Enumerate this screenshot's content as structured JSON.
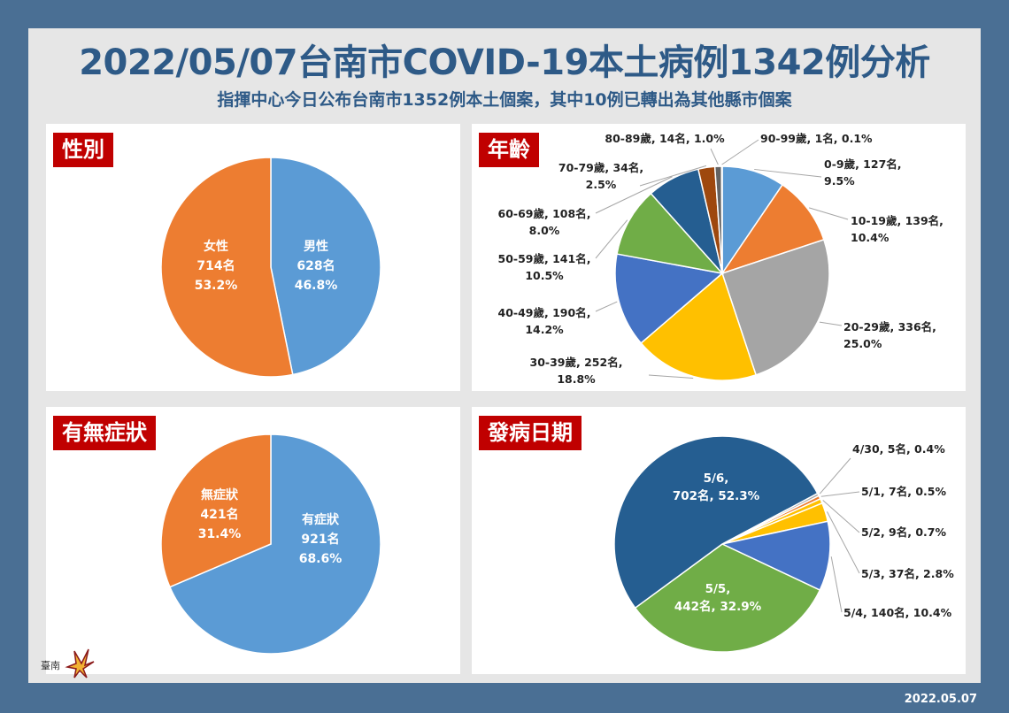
{
  "title": "2022/05/07台南市COVID-19本土病例1342例分析",
  "subtitle": "指揮中心今日公布台南市1352例本土個案，其中10例已轉出為其他縣市個案",
  "date": "2022.05.07",
  "logo": {
    "icon": "tainan-city-logo",
    "text": "臺南"
  },
  "panels": {
    "gender": "性別",
    "age": "年齡",
    "symptom": "有無症狀",
    "onset": "發病日期"
  },
  "chart_data": [
    {
      "type": "pie",
      "title": "性別",
      "slices": [
        {
          "label": "男性",
          "count": "628名",
          "pct": "46.8%",
          "value": 46.8,
          "color": "#5b9bd5"
        },
        {
          "label": "女性",
          "count": "714名",
          "pct": "53.2%",
          "value": 53.2,
          "color": "#ed7d31"
        }
      ]
    },
    {
      "type": "pie",
      "title": "年齡",
      "slices": [
        {
          "label": "0-9歲, 127名,",
          "pct": "9.5%",
          "value": 9.5,
          "color": "#5b9bd5"
        },
        {
          "label": "10-19歲, 139名,",
          "pct": "10.4%",
          "value": 10.4,
          "color": "#ed7d31"
        },
        {
          "label": "20-29歲, 336名,",
          "pct": "25.0%",
          "value": 25.0,
          "color": "#a5a5a5"
        },
        {
          "label": "30-39歲, 252名,",
          "pct": "18.8%",
          "value": 18.8,
          "color": "#ffc000"
        },
        {
          "label": "40-49歲, 190名,",
          "pct": "14.2%",
          "value": 14.2,
          "color": "#4472c4"
        },
        {
          "label": "50-59歲, 141名,",
          "pct": "10.5%",
          "value": 10.5,
          "color": "#70ad47"
        },
        {
          "label": "60-69歲, 108名,",
          "pct": "8.0%",
          "value": 8.0,
          "color": "#255e91"
        },
        {
          "label": "70-79歲, 34名,",
          "pct": "2.5%",
          "value": 2.5,
          "color": "#9e480e"
        },
        {
          "label": "80-89歲, 14名, 1.0%",
          "pct": "",
          "value": 1.0,
          "color": "#636363"
        },
        {
          "label": "90-99歲, 1名, 0.1%",
          "pct": "",
          "value": 0.1,
          "color": "#997300"
        }
      ]
    },
    {
      "type": "pie",
      "title": "有無症狀",
      "slices": [
        {
          "label": "有症狀",
          "count": "921名",
          "pct": "68.6%",
          "value": 68.6,
          "color": "#5b9bd5"
        },
        {
          "label": "無症狀",
          "count": "421名",
          "pct": "31.4%",
          "value": 31.4,
          "color": "#ed7d31"
        }
      ]
    },
    {
      "type": "pie",
      "title": "發病日期",
      "slices": [
        {
          "label": "4/30, 5名, 0.4%",
          "value": 0.4,
          "color": "#a5a5a5"
        },
        {
          "label": "5/1, 7名, 0.5%",
          "value": 0.5,
          "color": "#ed7d31"
        },
        {
          "label": "5/2, 9名, 0.7%",
          "value": 0.7,
          "color": "#ffc000"
        },
        {
          "label": "5/3, 37名, 2.8%",
          "value": 2.8,
          "color": "#ffc000"
        },
        {
          "label": "5/4, 140名, 10.4%",
          "value": 10.4,
          "color": "#4472c4"
        },
        {
          "label": "5/5,",
          "count": "442名, 32.9%",
          "value": 32.9,
          "color": "#70ad47"
        },
        {
          "label": "5/6,",
          "count": "702名, 52.3%",
          "value": 52.3,
          "color": "#255e91"
        }
      ]
    }
  ]
}
